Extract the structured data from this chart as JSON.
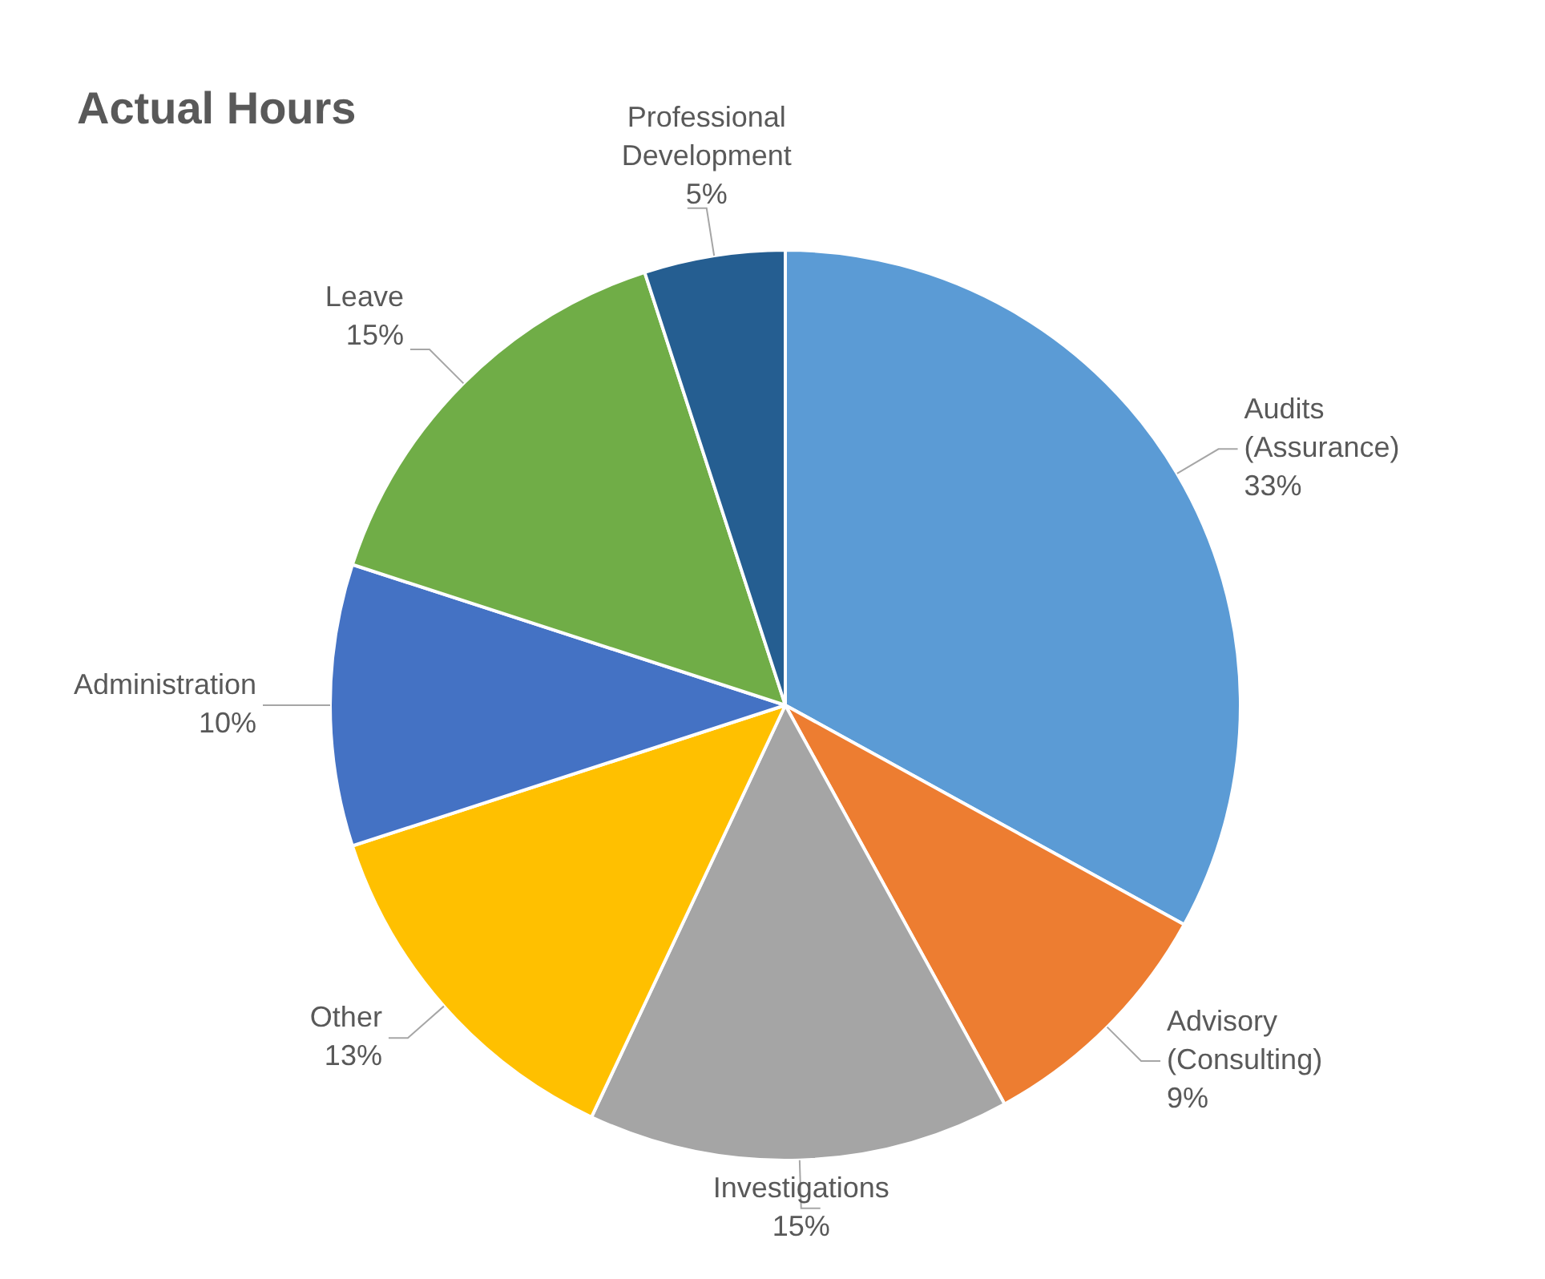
{
  "chart_data": {
    "type": "pie",
    "title": "Actual Hours",
    "categories": [
      "Audits (Assurance)",
      "Advisory (Consulting)",
      "Investigations",
      "Other",
      "Administration",
      "Leave",
      "Professional Development"
    ],
    "values": [
      33,
      9,
      15,
      13,
      10,
      15,
      5
    ],
    "colors": [
      "#5b9bd5",
      "#ed7d31",
      "#a5a5a5",
      "#ffc000",
      "#4472c4",
      "#70ad47",
      "#255e91"
    ],
    "value_labels": [
      "33%",
      "9%",
      "15%",
      "13%",
      "10%",
      "15%",
      "5%"
    ],
    "legend": false
  }
}
